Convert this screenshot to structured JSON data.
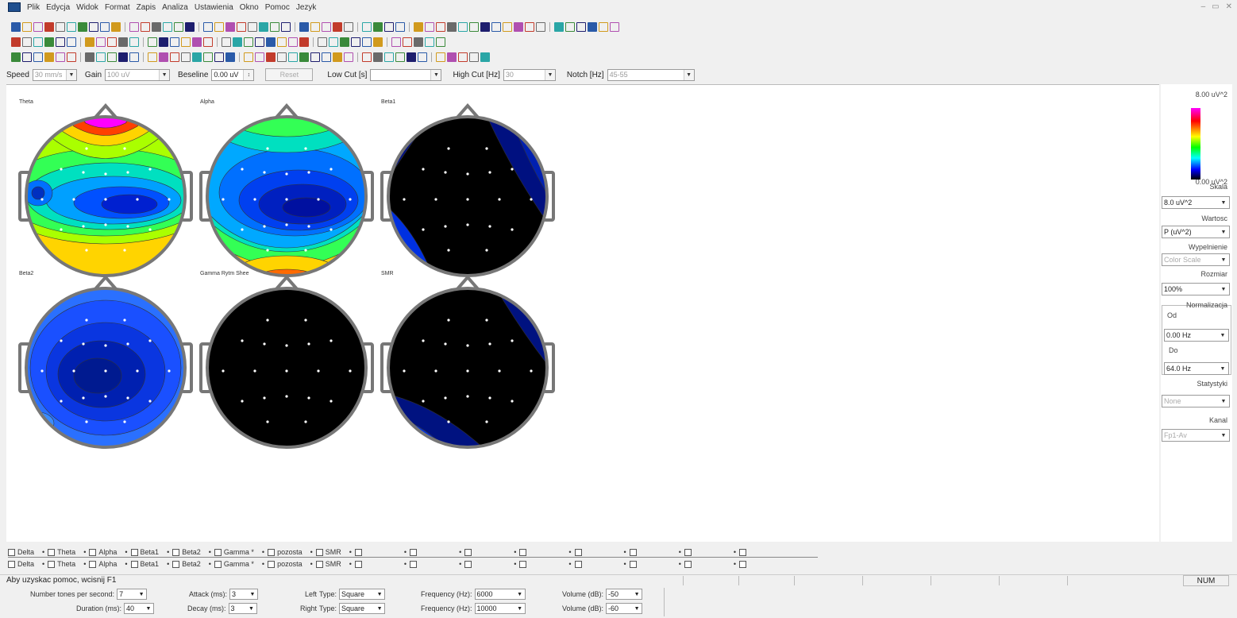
{
  "menu": {
    "items": [
      "Plik",
      "Edycja",
      "Widok",
      "Format",
      "Zapis",
      "Analiza",
      "Ustawienia",
      "Okno",
      "Pomoc",
      "Jezyk"
    ]
  },
  "params": {
    "speed_label": "Speed",
    "speed_value": "30 mm/s",
    "gain_label": "Gain",
    "gain_value": "100 uV",
    "baseline_label": "Beseline",
    "baseline_value": "0.00 uV",
    "reset_label": "Reset",
    "lowcut_label": "Low Cut [s]",
    "lowcut_value": "",
    "highcut_label": "High Cut [Hz]",
    "highcut_value": "30",
    "notch_label": "Notch [Hz]",
    "notch_value": "45-55"
  },
  "maps": [
    {
      "title": "Theta",
      "pattern": "theta"
    },
    {
      "title": "Alpha",
      "pattern": "alpha"
    },
    {
      "title": "Beta1",
      "pattern": "beta1"
    },
    {
      "title": "Beta2",
      "pattern": "beta2"
    },
    {
      "title": "Gamma Rytm Shee",
      "pattern": "gamma"
    },
    {
      "title": "SMR",
      "pattern": "smr"
    }
  ],
  "scale_panel": {
    "max_label": "8.00 uV^2",
    "min_label": "0.00 uV^2",
    "skala_label": "Skala",
    "skala_value": "8.0 uV^2",
    "wartosc_label": "Wartosc",
    "wartosc_value": "P (uV^2)",
    "wypelnienie_label": "Wypelnienie",
    "wypelnienie_value": "Color Scale",
    "rozmiar_label": "Rozmiar",
    "rozmiar_value": "100%",
    "normalizacja_label": "Normalizacja",
    "od_label": "Od",
    "od_value": "0.00 Hz",
    "do_label": "Do",
    "do_value": "64.0 Hz",
    "statystyki_label": "Statystyki",
    "statystyki_value": "None",
    "kanal_label": "Kanal",
    "kanal_value": "Fp1-Av"
  },
  "bands_row1": [
    "Delta",
    "Theta",
    "Alpha",
    "Beta1",
    "Beta2",
    "Gamma *",
    "pozosta",
    "SMR",
    "",
    "",
    "",
    "",
    "",
    "",
    "",
    ""
  ],
  "bands_row2": [
    "Delta",
    "Theta",
    "Alpha",
    "Beta1",
    "Beta2",
    "Gamma *",
    "pozosta",
    "SMR",
    "",
    "",
    "",
    "",
    "",
    "",
    "",
    ""
  ],
  "status": {
    "text": "Aby uzyskac pomoc, wcisnij F1",
    "num": "NUM"
  },
  "tone": {
    "tones_label": "Number tones per second:",
    "tones_value": "7",
    "duration_label": "Duration (ms):",
    "duration_value": "40",
    "attack_label": "Attack (ms):",
    "attack_value": "3",
    "decay_label": "Decay (ms):",
    "decay_value": "3",
    "left_label": "Left",
    "right_label": "Right",
    "type_label": "Type:",
    "left_type": "Square",
    "right_type": "Square",
    "freq_label": "Frequency (Hz):",
    "left_freq": "6000",
    "right_freq": "10000",
    "vol_label": "Volume (dB):",
    "left_vol": "-50",
    "right_vol": "-60"
  },
  "colors": {
    "accent": "#1f4f8f",
    "map_border": "#777777"
  }
}
